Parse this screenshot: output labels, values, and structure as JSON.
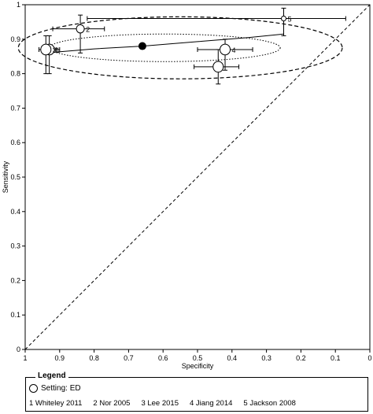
{
  "chart_data": {
    "type": "scatter",
    "title": "",
    "xlabel": "Specificity",
    "ylabel": "Sensitivity",
    "xlim": [
      1,
      0
    ],
    "ylim": [
      0,
      1
    ],
    "x_reversed": true,
    "x_ticks": [
      "1",
      "0.9",
      "0.8",
      "0.7",
      "0.6",
      "0.5",
      "0.4",
      "0.3",
      "0.2",
      "0.1",
      "0"
    ],
    "y_ticks": [
      "0",
      "0.1",
      "0.2",
      "0.3",
      "0.4",
      "0.5",
      "0.6",
      "0.7",
      "0.8",
      "0.9",
      "1"
    ],
    "grid": false,
    "chance_line": true,
    "studies": [
      {
        "id": "1",
        "label": "1",
        "spec": 0.93,
        "sens": 0.87,
        "spec_ci": [
          0.96,
          0.9
        ],
        "sens_ci": [
          0.8,
          0.91
        ]
      },
      {
        "id": "2",
        "label": "2",
        "spec": 0.84,
        "sens": 0.93,
        "spec_ci": [
          0.92,
          0.77
        ],
        "sens_ci": [
          0.86,
          0.97
        ]
      },
      {
        "id": "3",
        "label": "3",
        "spec": 0.94,
        "sens": 0.87,
        "spec_ci": [
          0.96,
          0.91
        ],
        "sens_ci": [
          0.8,
          0.91
        ]
      },
      {
        "id": "4",
        "label": "4",
        "spec": 0.42,
        "sens": 0.87,
        "spec_ci": [
          0.5,
          0.34
        ],
        "sens_ci": [
          0.81,
          0.9
        ]
      },
      {
        "id": "5",
        "label": "5",
        "spec": 0.25,
        "sens": 0.96,
        "spec_ci": [
          0.82,
          0.07
        ],
        "sens_ci": [
          0.91,
          0.99
        ]
      },
      {
        "id": "6",
        "label": "",
        "spec": 0.44,
        "sens": 0.82,
        "spec_ci": [
          0.51,
          0.38
        ],
        "sens_ci": [
          0.77,
          0.87
        ]
      }
    ],
    "summary_point": {
      "spec": 0.66,
      "sens": 0.88
    },
    "sroc_curve": [
      [
        0.94,
        0.86
      ],
      [
        0.8,
        0.872
      ],
      [
        0.66,
        0.88
      ],
      [
        0.5,
        0.893
      ],
      [
        0.35,
        0.905
      ],
      [
        0.25,
        0.915
      ]
    ],
    "confidence_region": {
      "center_spec": 0.595,
      "center_sens": 0.875,
      "half_width_spec": 0.335,
      "half_height_sens": 0.04
    },
    "prediction_region": {
      "center_spec": 0.55,
      "center_sens": 0.875,
      "half_width_spec": 0.47,
      "half_height_sens": 0.09
    }
  },
  "legend": {
    "title": "Legend",
    "setting_label": "Setting: ED",
    "study_labels": [
      "1 Whiteley 2011",
      "2 Nor 2005",
      "3 Lee 2015",
      "4 Jiang 2014",
      "5 Jackson 2008"
    ]
  }
}
